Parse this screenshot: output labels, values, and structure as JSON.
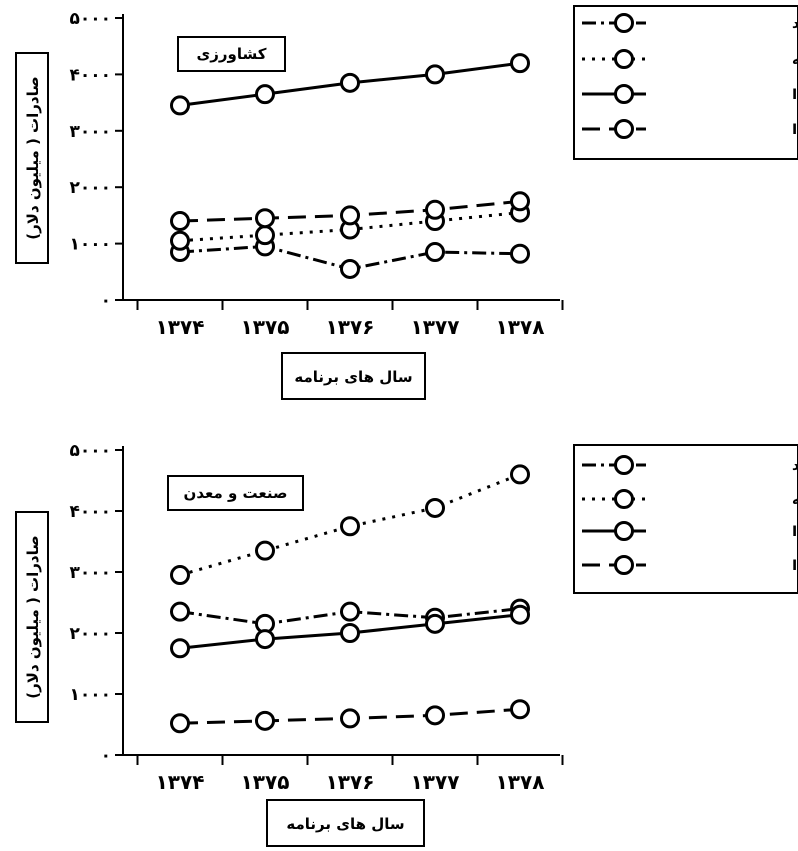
{
  "chart_data": [
    {
      "type": "line",
      "title": "کشاورزی",
      "xlabel": "سال های برنامه",
      "ylabel": "صادرات ( میلیون دلار)",
      "categories": [
        "۱۳۷۴",
        "۱۳۷۵",
        "۱۳۷۶",
        "۱۳۷۷",
        "۱۳۷۸"
      ],
      "ylim": [
        0,
        5000
      ],
      "yticks": [
        "۰",
        "۱۰۰۰",
        "۲۰۰۰",
        "۳۰۰۰",
        "۴۰۰۰",
        "۵۰۰۰"
      ],
      "grid": false,
      "legend_position": "top-right",
      "series": [
        {
          "name": "عملکرد",
          "style": "dashdot",
          "values": [
            850,
            950,
            550,
            850,
            820
          ]
        },
        {
          "name": "هدف های برنامه",
          "style": "dotted",
          "values": [
            1050,
            1150,
            1250,
            1400,
            1550
          ]
        },
        {
          "name": "سناریو I",
          "style": "solid",
          "values": [
            3450,
            3650,
            3850,
            4000,
            4200
          ]
        },
        {
          "name": "سناریو II",
          "style": "dashed",
          "values": [
            1400,
            1450,
            1500,
            1600,
            1750
          ]
        }
      ]
    },
    {
      "type": "line",
      "title": "صنعت و معدن",
      "xlabel": "سال های برنامه",
      "ylabel": "صادرات ( میلیون دلار)",
      "categories": [
        "۱۳۷۴",
        "۱۳۷۵",
        "۱۳۷۶",
        "۱۳۷۷",
        "۱۳۷۸"
      ],
      "ylim": [
        0,
        5000
      ],
      "yticks": [
        "۰",
        "۱۰۰۰",
        "۲۰۰۰",
        "۳۰۰۰",
        "۴۰۰۰",
        "۵۰۰۰"
      ],
      "grid": false,
      "legend_position": "top-right",
      "series": [
        {
          "name": "عملکرد",
          "style": "dashdot",
          "values": [
            2350,
            2150,
            2350,
            2250,
            2400
          ]
        },
        {
          "name": "هدف های برنامه",
          "style": "dotted",
          "values": [
            2950,
            3350,
            3750,
            4050,
            4600
          ]
        },
        {
          "name": "سناریو I",
          "style": "solid",
          "values": [
            1750,
            1900,
            2000,
            2150,
            2300
          ]
        },
        {
          "name": "سناریو II",
          "style": "dashed",
          "values": [
            520,
            560,
            600,
            650,
            750
          ]
        }
      ]
    }
  ]
}
